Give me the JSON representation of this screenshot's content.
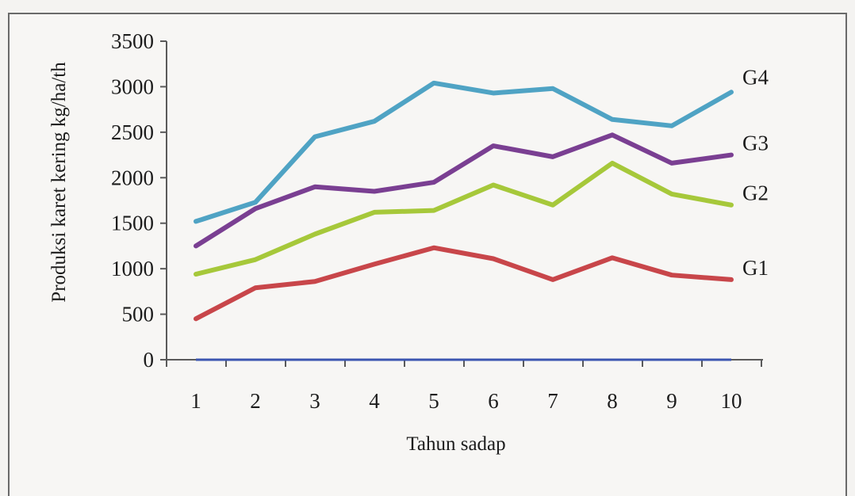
{
  "chart_data": {
    "type": "line",
    "title": "",
    "xlabel": "Tahun sadap",
    "ylabel": "Produksi karet kering kg/ha/th",
    "ylim": [
      0,
      3500
    ],
    "yticks": [
      0,
      500,
      1000,
      1500,
      2000,
      2500,
      3000,
      3500
    ],
    "x": [
      1,
      2,
      3,
      4,
      5,
      6,
      7,
      8,
      9,
      10
    ],
    "grid": false,
    "legend": "none",
    "series": [
      {
        "name": "G4",
        "color": "#4fa3c4",
        "values": [
          1520,
          1730,
          2450,
          2620,
          3040,
          2930,
          2980,
          2640,
          2570,
          2940
        ]
      },
      {
        "name": "G3",
        "color": "#7a3f92",
        "values": [
          1250,
          1660,
          1900,
          1850,
          1950,
          2350,
          2230,
          2470,
          2160,
          2250
        ]
      },
      {
        "name": "G2",
        "color": "#a6c83a",
        "values": [
          940,
          1100,
          1380,
          1620,
          1640,
          1920,
          1700,
          2160,
          1820,
          1700
        ]
      },
      {
        "name": "G1",
        "color": "#c8464a",
        "values": [
          450,
          790,
          860,
          1050,
          1230,
          1110,
          880,
          1120,
          930,
          880
        ]
      }
    ],
    "baseline": {
      "color": "#3b55b0",
      "value": 0
    }
  }
}
